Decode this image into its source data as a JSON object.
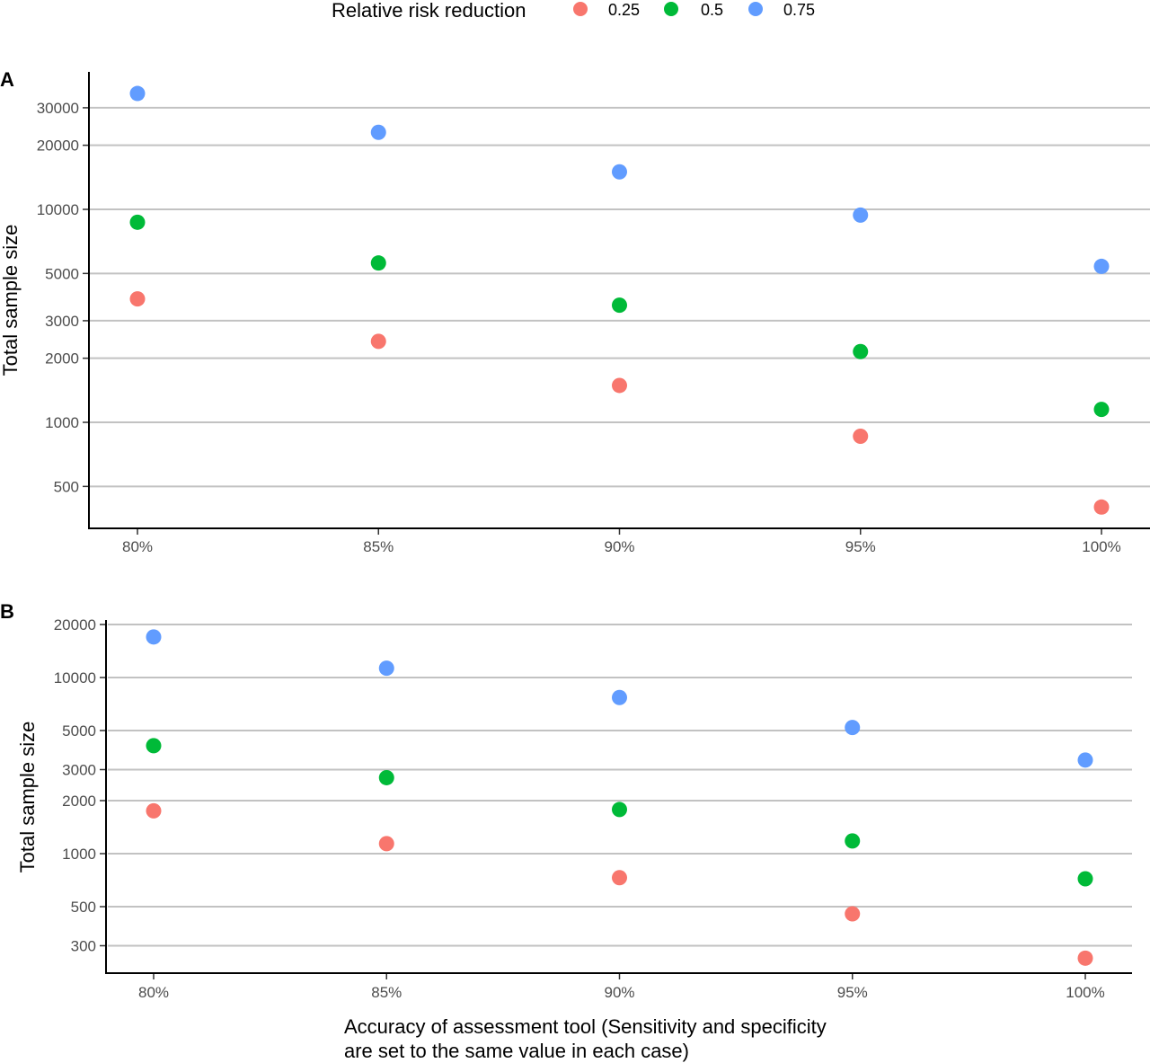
{
  "legend": {
    "title": "Relative risk reduction",
    "items": [
      {
        "label": "0.25",
        "color": "#F8766D"
      },
      {
        "label": "0.5",
        "color": "#00BA38"
      },
      {
        "label": "0.75",
        "color": "#619CFF"
      }
    ]
  },
  "xlabel_lines": [
    "Accuracy of assessment tool (Sensitivity and specificity",
    "are set to the same value in each case)"
  ],
  "chart_data": [
    {
      "panel": "A",
      "type": "scatter",
      "categories": [
        "80%",
        "85%",
        "90%",
        "95%",
        "100%"
      ],
      "ylabel": "Total sample size",
      "yscale": "log",
      "ylim": [
        330,
        40000
      ],
      "yticks": [
        500,
        1000,
        2000,
        3000,
        5000,
        10000,
        20000,
        30000
      ],
      "grid": true,
      "series": [
        {
          "name": "0.25",
          "color": "#F8766D",
          "values": [
            3800,
            2400,
            1490,
            860,
            400
          ]
        },
        {
          "name": "0.5",
          "color": "#00BA38",
          "values": [
            8700,
            5600,
            3550,
            2150,
            1150
          ]
        },
        {
          "name": "0.75",
          "color": "#619CFF",
          "values": [
            35000,
            23000,
            15000,
            9400,
            5400
          ]
        }
      ]
    },
    {
      "panel": "B",
      "type": "scatter",
      "categories": [
        "80%",
        "85%",
        "90%",
        "95%",
        "100%"
      ],
      "ylabel": "Total sample size",
      "yscale": "log",
      "ylim": [
        200,
        21000
      ],
      "yticks": [
        300,
        500,
        1000,
        2000,
        3000,
        5000,
        10000,
        20000
      ],
      "grid": true,
      "series": [
        {
          "name": "0.25",
          "color": "#F8766D",
          "values": [
            1750,
            1140,
            730,
            455,
            255
          ]
        },
        {
          "name": "0.5",
          "color": "#00BA38",
          "values": [
            4100,
            2700,
            1780,
            1180,
            720
          ]
        },
        {
          "name": "0.75",
          "color": "#619CFF",
          "values": [
            17000,
            11300,
            7700,
            5200,
            3400
          ]
        }
      ]
    }
  ]
}
